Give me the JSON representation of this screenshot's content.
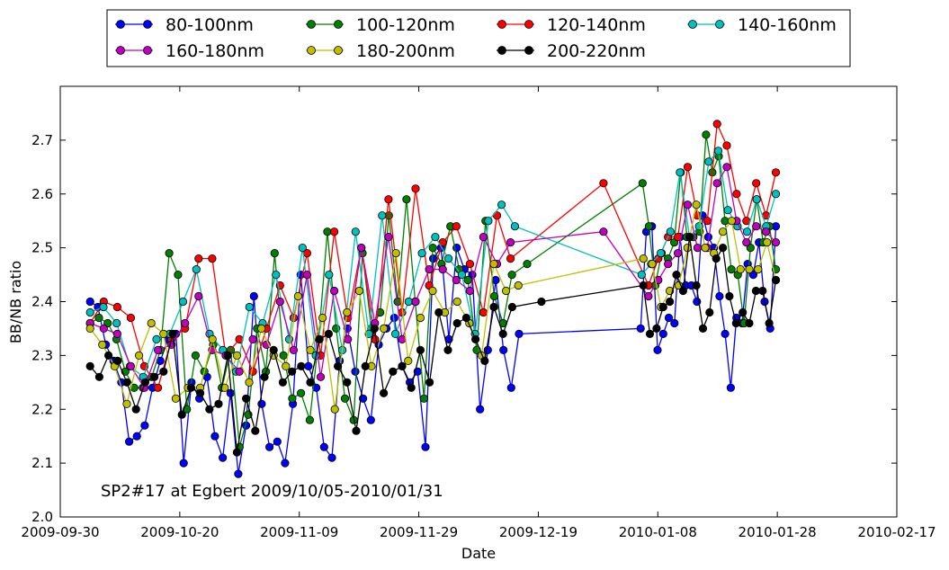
{
  "chart_data": {
    "type": "line",
    "xlabel": "Date",
    "ylabel": "BB/NB ratio",
    "xlim": [
      "2009-09-30",
      "2010-02-17"
    ],
    "ylim": [
      2.0,
      2.8
    ],
    "x_ticks": [
      "2009-09-30",
      "2009-10-20",
      "2009-11-09",
      "2009-11-29",
      "2009-12-19",
      "2010-01-08",
      "2010-01-28",
      "2010-02-17"
    ],
    "y_ticks": [
      "2.0",
      "2.1",
      "2.2",
      "2.3",
      "2.4",
      "2.5",
      "2.6",
      "2.7"
    ],
    "grid": false,
    "legend_position": "top",
    "annotation": "SP2#17 at Egbert 2009/10/05-2010/01/31",
    "series": [
      {
        "name": "80-100nm",
        "color": "#0000ff",
        "y": [
          2.4,
          2.39,
          2.32,
          2.29,
          2.25,
          2.14,
          2.15,
          2.17,
          2.24,
          2.29,
          2.33,
          2.34,
          2.1,
          2.25,
          2.22,
          2.26,
          2.15,
          2.11,
          2.23,
          2.08,
          2.17,
          2.41,
          2.21,
          2.13,
          2.14,
          2.1,
          2.21,
          2.45,
          2.28,
          2.24,
          2.13,
          2.11,
          2.29,
          2.35,
          2.27,
          2.22,
          2.18,
          2.32,
          2.35,
          2.37,
          2.28,
          2.25,
          2.27,
          2.13,
          2.48,
          2.5,
          2.33,
          2.5,
          2.46,
          2.45,
          2.2,
          2.31,
          2.44,
          2.31,
          2.24,
          2.34,
          2.35,
          2.53,
          2.54,
          2.31,
          2.34,
          2.37,
          2.36,
          2.52,
          2.43,
          2.43,
          2.4,
          2.56,
          2.52,
          2.5,
          2.41,
          2.34,
          2.24,
          2.37,
          2.36,
          2.47,
          2.45,
          2.51,
          2.4,
          2.35,
          2.54
        ]
      },
      {
        "name": "100-120nm",
        "color": "#008000",
        "y": [
          2.36,
          2.37,
          2.36,
          2.33,
          2.27,
          2.24,
          2.24,
          2.26,
          2.31,
          2.49,
          2.45,
          2.2,
          2.3,
          2.27,
          2.32,
          2.24,
          2.31,
          2.13,
          2.19,
          2.35,
          2.27,
          2.49,
          2.3,
          2.22,
          2.23,
          2.18,
          2.33,
          2.53,
          2.35,
          2.22,
          2.18,
          2.49,
          2.35,
          2.38,
          2.56,
          2.4,
          2.59,
          2.4,
          2.22,
          2.5,
          2.47,
          2.54,
          2.46,
          2.44,
          2.31,
          2.55,
          2.41,
          2.36,
          2.45,
          2.47,
          2.62,
          2.54,
          2.43,
          2.49,
          2.48,
          2.51,
          2.64,
          2.52,
          2.52,
          2.53,
          2.71,
          2.64,
          2.67,
          2.55,
          2.46,
          2.45,
          2.36,
          2.5,
          2.59,
          2.51,
          2.54,
          2.46
        ]
      },
      {
        "name": "120-140nm",
        "color": "#ff0000",
        "y": [
          2.36,
          2.4,
          2.39,
          2.37,
          2.28,
          2.24,
          2.33,
          2.35,
          2.48,
          2.48,
          2.3,
          2.33,
          2.27,
          2.35,
          2.43,
          2.37,
          2.49,
          2.3,
          2.53,
          2.37,
          2.5,
          2.33,
          2.59,
          2.38,
          2.61,
          2.43,
          2.51,
          2.54,
          2.47,
          2.38,
          2.56,
          2.48,
          2.62,
          2.43,
          2.48,
          2.52,
          2.52,
          2.65,
          2.56,
          2.55,
          2.73,
          2.69,
          2.6,
          2.55,
          2.62,
          2.56,
          2.64
        ]
      },
      {
        "name": "140-160nm",
        "color": "#00bfbf",
        "y": [
          2.38,
          2.39,
          2.36,
          2.28,
          2.26,
          2.33,
          2.34,
          2.4,
          2.46,
          2.34,
          2.31,
          2.27,
          2.39,
          2.36,
          2.45,
          2.33,
          2.5,
          2.3,
          2.45,
          2.31,
          2.53,
          2.34,
          2.56,
          2.34,
          2.4,
          2.49,
          2.52,
          2.48,
          2.45,
          2.34,
          2.55,
          2.58,
          2.54,
          2.45,
          2.47,
          2.49,
          2.53,
          2.64,
          2.52,
          2.54,
          2.66,
          2.68,
          2.57,
          2.54,
          2.53,
          2.59,
          2.54,
          2.6
        ]
      },
      {
        "name": "160-180nm",
        "color": "#bf00bf",
        "y": [
          2.36,
          2.35,
          2.34,
          2.28,
          2.24,
          2.31,
          2.32,
          2.36,
          2.41,
          2.31,
          2.3,
          2.27,
          2.33,
          2.32,
          2.4,
          2.31,
          2.45,
          2.26,
          2.42,
          2.33,
          2.5,
          2.36,
          2.52,
          2.33,
          2.4,
          2.46,
          2.46,
          2.44,
          2.42,
          2.52,
          2.47,
          2.51,
          2.53,
          2.41,
          2.44,
          2.47,
          2.49,
          2.58,
          2.5,
          2.5,
          2.62,
          2.65,
          2.55,
          2.51,
          2.54,
          2.53,
          2.51
        ]
      },
      {
        "name": "180-200nm",
        "color": "#bfbf00",
        "y": [
          2.35,
          2.32,
          2.28,
          2.21,
          2.3,
          2.36,
          2.34,
          2.22,
          2.24,
          2.24,
          2.33,
          2.24,
          2.3,
          2.25,
          2.35,
          2.3,
          2.28,
          2.41,
          2.31,
          2.37,
          2.2,
          2.38,
          2.42,
          2.28,
          2.35,
          2.49,
          2.29,
          2.37,
          2.42,
          2.38,
          2.4,
          2.36,
          2.3,
          2.47,
          2.42,
          2.43,
          2.48,
          2.47,
          2.39,
          2.42,
          2.43,
          2.5,
          2.58,
          2.5,
          2.49,
          2.53,
          2.55,
          2.46,
          2.46,
          2.46,
          2.51,
          2.44
        ]
      },
      {
        "name": "200-220nm",
        "color": "#000000",
        "y": [
          2.28,
          2.26,
          2.3,
          2.29,
          2.25,
          2.2,
          2.25,
          2.26,
          2.27,
          2.34,
          2.19,
          2.24,
          2.23,
          2.2,
          2.21,
          2.3,
          2.12,
          2.22,
          2.16,
          2.26,
          2.31,
          2.25,
          2.27,
          2.28,
          2.25,
          2.33,
          2.34,
          2.28,
          2.25,
          2.16,
          2.28,
          2.35,
          2.23,
          2.27,
          2.28,
          2.24,
          2.31,
          2.25,
          2.38,
          2.31,
          2.36,
          2.37,
          2.33,
          2.29,
          2.39,
          2.34,
          2.39,
          2.4,
          2.43,
          2.34,
          2.35,
          2.39,
          2.4,
          2.45,
          2.42,
          2.52,
          2.43,
          2.35,
          2.38,
          2.48,
          2.5,
          2.41,
          2.36,
          2.38,
          2.36,
          2.42,
          2.42,
          2.36,
          2.44
        ]
      }
    ]
  }
}
